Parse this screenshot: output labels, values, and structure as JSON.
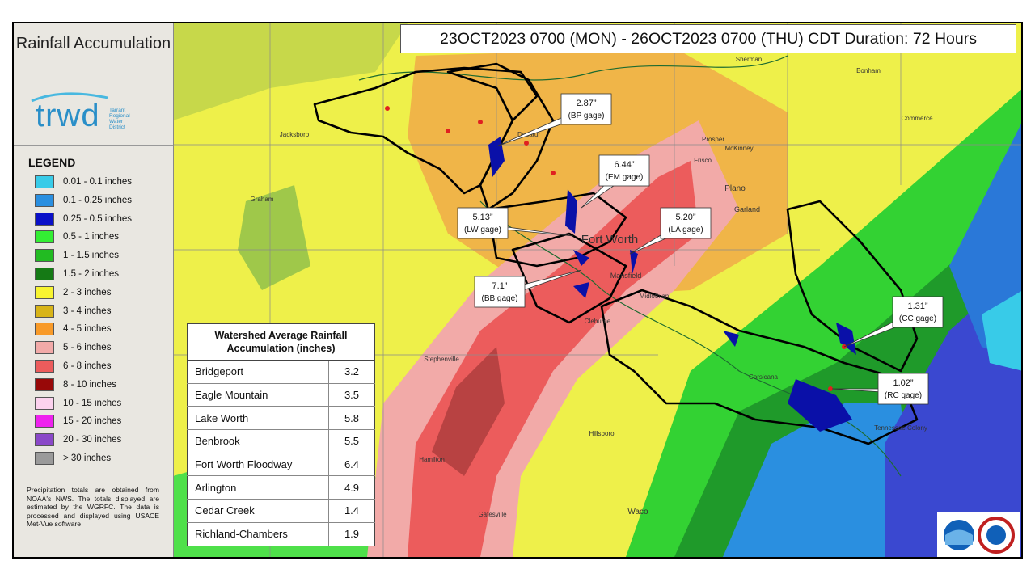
{
  "header": {
    "title": "Rainfall Accumulation",
    "logo": {
      "name": "trwd",
      "org_lines": [
        "Tarrant",
        "Regional",
        "Water",
        "District"
      ]
    },
    "date_range": "23OCT2023 0700 (MON) - 26OCT2023 0700 (THU) CDT Duration: 72 Hours"
  },
  "legend": {
    "title": "LEGEND",
    "items": [
      {
        "label": "0.01 - 0.1 inches",
        "color": "#38cbe8"
      },
      {
        "label": "0.1 - 0.25 inches",
        "color": "#2a8fe0"
      },
      {
        "label": "0.25 - 0.5 inches",
        "color": "#0a10c8"
      },
      {
        "label": "0.5 - 1 inches",
        "color": "#33ee33"
      },
      {
        "label": "1 - 1.5 inches",
        "color": "#22bb22"
      },
      {
        "label": "1.5 - 2 inches",
        "color": "#157a15"
      },
      {
        "label": "2 - 3 inches",
        "color": "#f8f430"
      },
      {
        "label": "3 - 4 inches",
        "color": "#d8b418"
      },
      {
        "label": "4 - 5 inches",
        "color": "#f89a28"
      },
      {
        "label": "5 - 6 inches",
        "color": "#f2aaa8"
      },
      {
        "label": "6 - 8 inches",
        "color": "#ec5c5c"
      },
      {
        "label": "8 - 10 inches",
        "color": "#980808"
      },
      {
        "label": "10 - 15 inches",
        "color": "#fcd2ee"
      },
      {
        "label": "15 - 20 inches",
        "color": "#ee22ee"
      },
      {
        "label": "20 - 30 inches",
        "color": "#8a48c8"
      },
      {
        "label": "> 30 inches",
        "color": "#9a9a9a"
      }
    ]
  },
  "footnote": "Precipitation totals are obtained from NOAA's NWS. The totals displayed are estimated by the WGRFC. The data is processed and displayed using USACE Met-Vue software",
  "table": {
    "title": "Watershed Average Rainfall Accumulation (inches)",
    "rows": [
      [
        "Bridgeport",
        3.2
      ],
      [
        "Eagle Mountain",
        3.5
      ],
      [
        "Lake Worth",
        5.8
      ],
      [
        "Benbrook",
        5.5
      ],
      [
        "Fort Worth Floodway",
        6.4
      ],
      [
        "Arlington",
        4.9
      ],
      [
        "Cedar Creek",
        1.4
      ],
      [
        "Richland-Chambers",
        1.9
      ]
    ]
  },
  "gages": [
    {
      "value": "2.87”",
      "label": "(BP gage)"
    },
    {
      "value": "6.44”",
      "label": "(EM gage)"
    },
    {
      "value": "5.13”",
      "label": "(LW gage)"
    },
    {
      "value": "5.20”",
      "label": "(LA gage)"
    },
    {
      "value": "7.1”",
      "label": "(BB gage)"
    },
    {
      "value": "1.31”",
      "label": "(CC gage)"
    },
    {
      "value": "1.02”",
      "label": "(RC gage)"
    }
  ],
  "places": [
    "Fort Worth",
    "Plano",
    "Garland",
    "Mansfield",
    "Waco",
    "Stephenville",
    "Sherman",
    "Bonham",
    "McKinney",
    "Frisco",
    "Prosper",
    "Corsicana",
    "Tennessee Colony",
    "Cleburne",
    "Hillsboro",
    "Decatur",
    "Midlothian",
    "Hamilton",
    "Gatesville",
    "Jacksboro",
    "Graham",
    "Commerce"
  ]
}
